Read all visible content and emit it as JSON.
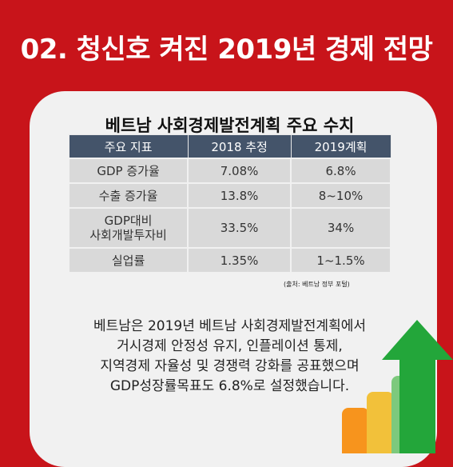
{
  "header": {
    "title": "02. 청신호 켜진 2019년 경제 전망"
  },
  "table": {
    "title": "베트남 사회경제발전계획 주요 수치",
    "columns": [
      "주요 지표",
      "2018 추정",
      "2019계획"
    ],
    "rows": [
      {
        "indicator": "GDP 증가율",
        "y2018": "7.08%",
        "y2019": "6.8%"
      },
      {
        "indicator": "수출 증가율",
        "y2018": "13.8%",
        "y2019": "8~10%"
      },
      {
        "indicator_line1": "GDP대비",
        "indicator_line2": "사회개발투자비",
        "y2018": "33.5%",
        "y2019": "34%"
      },
      {
        "indicator": "실업률",
        "y2018": "1.35%",
        "y2019": "1~1.5%"
      }
    ],
    "source": "(출처: 베트남 정부 포털)"
  },
  "body_text": [
    "베트남은 2019년 베트남 사회경제발전계획에서",
    "거시경제 안정성 유지, 인플레이션 통제,",
    "지역경제 자율성 및 경쟁력 강화를 공표했으며",
    "GDP성장률목표도 6.8%로 설정했습니다."
  ],
  "colors": {
    "background": "#c8141a",
    "table_header": "#44546a",
    "arrow": "#23a63a",
    "bar_orange": "#f7941d",
    "bar_yellow": "#f2c13a",
    "bar_lightgreen": "#7dc97d"
  },
  "icons": [
    "growth-arrow-icon",
    "bar-graph-icon"
  ]
}
